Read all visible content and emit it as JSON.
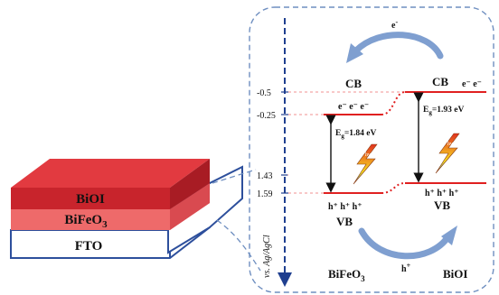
{
  "layers": {
    "biOI": "BiOI",
    "biFeO3_base": "BiFeO",
    "biFeO3_sub": "3",
    "fto": "FTO"
  },
  "axis": {
    "label": "vs. Ag/AgCl",
    "ticks": [
      {
        "value": -0.5,
        "label": "-0.5"
      },
      {
        "value": -0.25,
        "label": "-0.25"
      },
      {
        "value": 1.43,
        "label": "1.43"
      },
      {
        "value": 1.59,
        "label": "1.59"
      }
    ]
  },
  "bands": {
    "cb": "CB",
    "vb": "VB",
    "electron": "e",
    "electron_sup": "-",
    "hole": "h",
    "hole_sup": "+",
    "electron_group_left": "e⁻ e⁻ e⁻",
    "electron_group_right": "e⁻ e⁻",
    "hole_group": "h⁺ h⁺ h⁺"
  },
  "gaps": {
    "bifeo3_sym": "E",
    "bifeo3_sub": "g",
    "bifeo3_value": "=1.84 eV",
    "bioi_sym": "E",
    "bioi_sub": "g",
    "bioi_value": "=1.93 eV"
  },
  "light_label": "hν",
  "materials": {
    "left_base": "BiFeO",
    "left_sub": "3",
    "right": "BiOI"
  },
  "colors": {
    "bioi_layer": "#c8242c",
    "bifeo3_layer": "#ee6a6a",
    "fto_outline": "#2d4f9c",
    "band_line": "#e02020",
    "dash_box": "#6f8fc0",
    "arrow": "#7f9fd0",
    "axis": "#1f3f8f"
  }
}
